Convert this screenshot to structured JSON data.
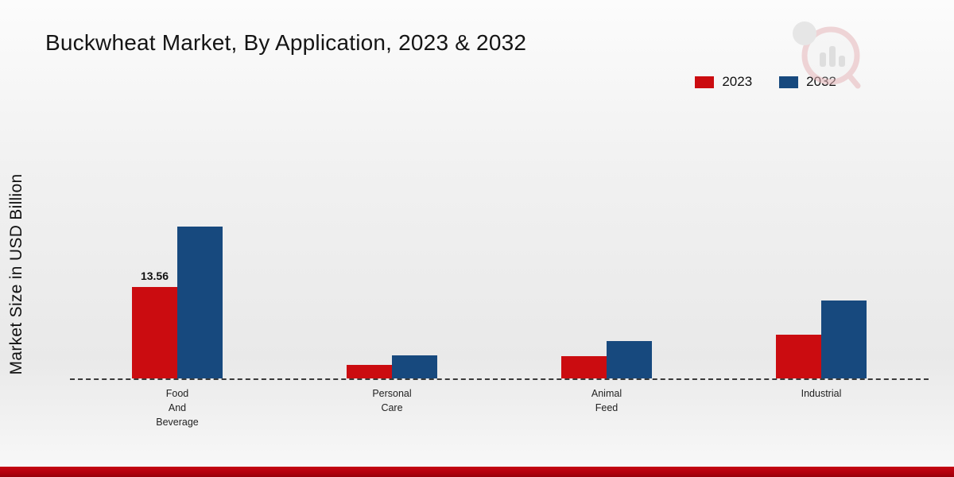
{
  "title": "Buckwheat Market, By Application, 2023 & 2032",
  "ylabel": "Market Size in USD Billion",
  "legend": [
    {
      "label": "2023",
      "color": "#cb0c10"
    },
    {
      "label": "2032",
      "color": "#17497e"
    }
  ],
  "chart_data": {
    "type": "bar",
    "title": "Buckwheat Market, By Application, 2023 & 2032",
    "xlabel": "",
    "ylabel": "Market Size in USD Billion",
    "categories": [
      "Food\nAnd\nBeverage",
      "Personal\nCare",
      "Animal\nFeed",
      "Industrial"
    ],
    "series": [
      {
        "name": "2023",
        "color": "#cb0c10",
        "values": [
          13.56,
          2.0,
          3.3,
          6.5
        ],
        "value_labels": [
          "13.56",
          null,
          null,
          null
        ]
      },
      {
        "name": "2032",
        "color": "#17497e",
        "values": [
          22.5,
          3.4,
          5.5,
          11.5
        ],
        "value_labels": [
          null,
          null,
          null,
          null
        ]
      }
    ],
    "ylim": [
      0,
      25
    ],
    "grid": false,
    "legend_position": "top-right",
    "baseline_style": "dashed"
  }
}
